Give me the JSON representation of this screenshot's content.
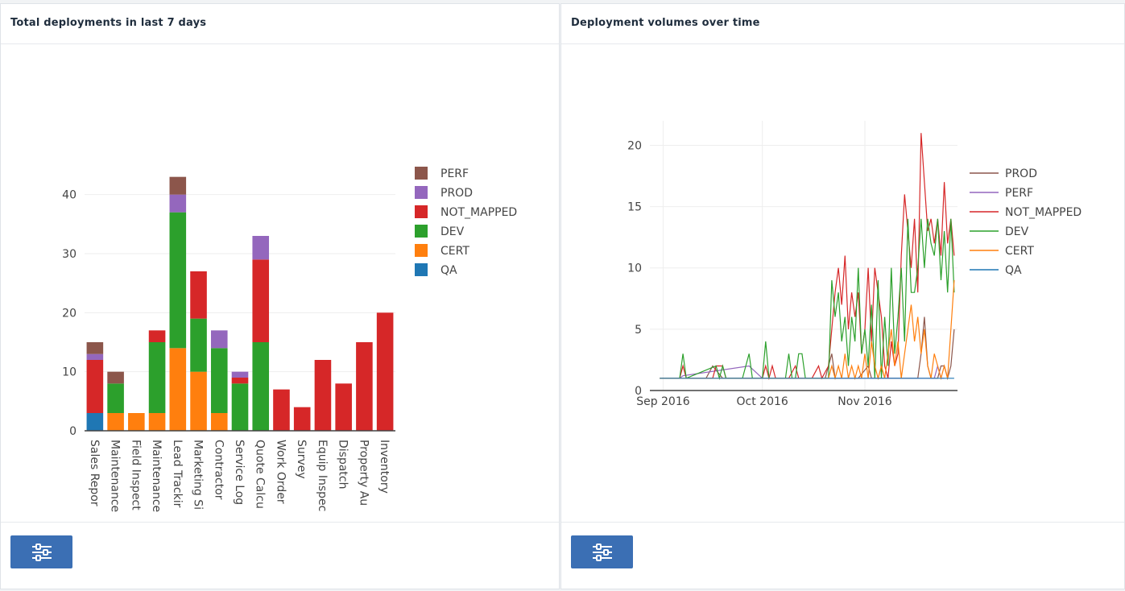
{
  "panels": {
    "left": {
      "title": "Total deployments in last 7 days",
      "settings_icon": "sliders-icon"
    },
    "right": {
      "title": "Deployment volumes over time",
      "settings_icon": "sliders-icon"
    }
  },
  "chart_data": [
    {
      "type": "bar",
      "stacked": true,
      "title": "Total deployments in last 7 days",
      "xlabel": "",
      "ylabel": "",
      "ylim": [
        0,
        45
      ],
      "yticks": [
        0,
        10,
        20,
        30,
        40
      ],
      "grid": true,
      "legend_placement": "top-right",
      "categories": [
        "Sales Repor",
        "Maintenance",
        "Field Inspect",
        "Maintenance",
        "Lead Trackir",
        "Marketing Si",
        "Contractor",
        "Service Log",
        "Quote Calcu",
        "Work Order",
        "Survey",
        "Equip Inspec",
        "Dispatch",
        "Property Au",
        "Inventory"
      ],
      "series": [
        {
          "name": "QA",
          "color": "#1f77b4",
          "values": [
            3,
            0,
            0,
            0,
            0,
            0,
            0,
            0,
            0,
            0,
            0,
            0,
            0,
            0,
            0
          ]
        },
        {
          "name": "CERT",
          "color": "#ff7f0e",
          "values": [
            0,
            3,
            3,
            3,
            14,
            10,
            3,
            0,
            0,
            0,
            0,
            0,
            0,
            0,
            0
          ]
        },
        {
          "name": "DEV",
          "color": "#2ca02c",
          "values": [
            0,
            5,
            0,
            12,
            23,
            9,
            11,
            8,
            15,
            0,
            0,
            0,
            0,
            0,
            0
          ]
        },
        {
          "name": "NOT_MAPPED",
          "color": "#d62728",
          "values": [
            9,
            0,
            0,
            2,
            0,
            8,
            0,
            1,
            14,
            7,
            4,
            12,
            8,
            15,
            20
          ]
        },
        {
          "name": "PROD",
          "color": "#9467bd",
          "values": [
            1,
            0,
            0,
            0,
            3,
            0,
            3,
            1,
            4,
            0,
            0,
            0,
            0,
            0,
            0
          ]
        },
        {
          "name": "PERF",
          "color": "#8c564b",
          "values": [
            2,
            2,
            0,
            0,
            3,
            0,
            0,
            0,
            0,
            0,
            0,
            0,
            0,
            0,
            0
          ]
        }
      ],
      "legend_order": [
        "PERF",
        "PROD",
        "NOT_MAPPED",
        "DEV",
        "CERT",
        "QA"
      ]
    },
    {
      "type": "line",
      "title": "Deployment volumes over time",
      "xlabel": "",
      "ylabel": "",
      "xlim": [
        "2016-08-28",
        "2016-11-29"
      ],
      "xticks": [
        {
          "date": "2016-09-01",
          "label": "Sep 2016"
        },
        {
          "date": "2016-10-01",
          "label": "Oct 2016"
        },
        {
          "date": "2016-11-01",
          "label": "Nov 2016"
        }
      ],
      "ylim": [
        0,
        22
      ],
      "yticks": [
        0,
        5,
        10,
        15,
        20
      ],
      "grid": true,
      "legend_placement": "top-right",
      "series": [
        {
          "name": "PROD",
          "color": "#8c564b",
          "points": [
            [
              "2016-09-09",
              1
            ],
            [
              "2016-09-14",
              1
            ],
            [
              "2016-09-16",
              2
            ],
            [
              "2016-09-19",
              1
            ],
            [
              "2016-10-20",
              1
            ],
            [
              "2016-10-22",
              3
            ],
            [
              "2016-10-23",
              1
            ],
            [
              "2016-10-30",
              1
            ],
            [
              "2016-11-02",
              2
            ],
            [
              "2016-11-03",
              1
            ],
            [
              "2016-11-06",
              1
            ],
            [
              "2016-11-08",
              1
            ],
            [
              "2016-11-09",
              1
            ],
            [
              "2016-11-15",
              1
            ],
            [
              "2016-11-17",
              1
            ],
            [
              "2016-11-18",
              3
            ],
            [
              "2016-11-19",
              6
            ],
            [
              "2016-11-20",
              2
            ],
            [
              "2016-11-21",
              1
            ],
            [
              "2016-11-22",
              1
            ],
            [
              "2016-11-23",
              1
            ],
            [
              "2016-11-24",
              2
            ],
            [
              "2016-11-25",
              2
            ],
            [
              "2016-11-26",
              1
            ],
            [
              "2016-11-27",
              2
            ],
            [
              "2016-11-28",
              5
            ]
          ]
        },
        {
          "name": "PERF",
          "color": "#9467bd",
          "points": [
            [
              "2016-08-31",
              1
            ],
            [
              "2016-09-06",
              1
            ],
            [
              "2016-09-07",
              1.2
            ],
            [
              "2016-09-27",
              2
            ],
            [
              "2016-10-01",
              1
            ],
            [
              "2016-11-15",
              1
            ],
            [
              "2016-11-22",
              1
            ],
            [
              "2016-11-23",
              2
            ],
            [
              "2016-11-24",
              1
            ],
            [
              "2016-11-25",
              1
            ]
          ]
        },
        {
          "name": "NOT_MAPPED",
          "color": "#d62728",
          "points": [
            [
              "2016-08-31",
              1
            ],
            [
              "2016-09-03",
              1
            ],
            [
              "2016-09-06",
              1
            ],
            [
              "2016-09-07",
              2
            ],
            [
              "2016-09-08",
              1
            ],
            [
              "2016-09-12",
              1
            ],
            [
              "2016-09-14",
              1
            ],
            [
              "2016-09-16",
              1
            ],
            [
              "2016-09-17",
              2
            ],
            [
              "2016-09-19",
              2
            ],
            [
              "2016-09-20",
              1
            ],
            [
              "2016-10-01",
              1
            ],
            [
              "2016-10-02",
              2
            ],
            [
              "2016-10-03",
              1
            ],
            [
              "2016-10-04",
              2
            ],
            [
              "2016-10-05",
              1
            ],
            [
              "2016-10-09",
              1
            ],
            [
              "2016-10-11",
              2
            ],
            [
              "2016-10-12",
              1
            ],
            [
              "2016-10-16",
              1
            ],
            [
              "2016-10-18",
              2
            ],
            [
              "2016-10-19",
              1
            ],
            [
              "2016-10-21",
              2
            ],
            [
              "2016-10-23",
              8
            ],
            [
              "2016-10-24",
              10
            ],
            [
              "2016-10-25",
              7
            ],
            [
              "2016-10-26",
              11
            ],
            [
              "2016-10-27",
              5
            ],
            [
              "2016-10-28",
              8
            ],
            [
              "2016-10-29",
              6
            ],
            [
              "2016-10-30",
              8
            ],
            [
              "2016-10-31",
              3
            ],
            [
              "2016-11-01",
              5
            ],
            [
              "2016-11-02",
              10
            ],
            [
              "2016-11-03",
              4
            ],
            [
              "2016-11-04",
              10
            ],
            [
              "2016-11-05",
              8
            ],
            [
              "2016-11-06",
              6
            ],
            [
              "2016-11-07",
              2
            ],
            [
              "2016-11-08",
              1
            ],
            [
              "2016-11-09",
              4
            ],
            [
              "2016-11-10",
              2
            ],
            [
              "2016-11-11",
              3
            ],
            [
              "2016-11-12",
              11
            ],
            [
              "2016-11-13",
              16
            ],
            [
              "2016-11-14",
              13
            ],
            [
              "2016-11-15",
              10
            ],
            [
              "2016-11-16",
              14
            ],
            [
              "2016-11-17",
              8
            ],
            [
              "2016-11-18",
              21
            ],
            [
              "2016-11-19",
              17
            ],
            [
              "2016-11-20",
              13
            ],
            [
              "2016-11-21",
              14
            ],
            [
              "2016-11-22",
              12
            ],
            [
              "2016-11-23",
              14
            ],
            [
              "2016-11-24",
              11
            ],
            [
              "2016-11-25",
              17
            ],
            [
              "2016-11-26",
              12
            ],
            [
              "2016-11-27",
              14
            ],
            [
              "2016-11-28",
              11
            ]
          ]
        },
        {
          "name": "DEV",
          "color": "#2ca02c",
          "points": [
            [
              "2016-08-31",
              1
            ],
            [
              "2016-09-06",
              1
            ],
            [
              "2016-09-07",
              3
            ],
            [
              "2016-09-08",
              1
            ],
            [
              "2016-09-17",
              2
            ],
            [
              "2016-09-18",
              1
            ],
            [
              "2016-09-19",
              2
            ],
            [
              "2016-09-20",
              1
            ],
            [
              "2016-09-25",
              1
            ],
            [
              "2016-09-26",
              2
            ],
            [
              "2016-09-27",
              3
            ],
            [
              "2016-09-28",
              1
            ],
            [
              "2016-10-01",
              1
            ],
            [
              "2016-10-02",
              4
            ],
            [
              "2016-10-03",
              1
            ],
            [
              "2016-10-08",
              1
            ],
            [
              "2016-10-09",
              3
            ],
            [
              "2016-10-10",
              1
            ],
            [
              "2016-10-11",
              1
            ],
            [
              "2016-10-12",
              3
            ],
            [
              "2016-10-13",
              3
            ],
            [
              "2016-10-14",
              1
            ],
            [
              "2016-10-21",
              1
            ],
            [
              "2016-10-22",
              9
            ],
            [
              "2016-10-23",
              6
            ],
            [
              "2016-10-24",
              8
            ],
            [
              "2016-10-25",
              4
            ],
            [
              "2016-10-26",
              6
            ],
            [
              "2016-10-27",
              2
            ],
            [
              "2016-10-28",
              6
            ],
            [
              "2016-10-29",
              4
            ],
            [
              "2016-10-30",
              10
            ],
            [
              "2016-10-31",
              3
            ],
            [
              "2016-11-01",
              5
            ],
            [
              "2016-11-02",
              2
            ],
            [
              "2016-11-03",
              7
            ],
            [
              "2016-11-04",
              1
            ],
            [
              "2016-11-05",
              9
            ],
            [
              "2016-11-06",
              1
            ],
            [
              "2016-11-07",
              6
            ],
            [
              "2016-11-08",
              2
            ],
            [
              "2016-11-09",
              10
            ],
            [
              "2016-11-10",
              3
            ],
            [
              "2016-11-11",
              6
            ],
            [
              "2016-11-12",
              10
            ],
            [
              "2016-11-13",
              4
            ],
            [
              "2016-11-14",
              14
            ],
            [
              "2016-11-15",
              8
            ],
            [
              "2016-11-16",
              8
            ],
            [
              "2016-11-17",
              10
            ],
            [
              "2016-11-18",
              14
            ],
            [
              "2016-11-19",
              10
            ],
            [
              "2016-11-20",
              14
            ],
            [
              "2016-11-21",
              12
            ],
            [
              "2016-11-22",
              11
            ],
            [
              "2016-11-23",
              14
            ],
            [
              "2016-11-24",
              9
            ],
            [
              "2016-11-25",
              13
            ],
            [
              "2016-11-26",
              8
            ],
            [
              "2016-11-27",
              14
            ],
            [
              "2016-11-28",
              8
            ]
          ]
        },
        {
          "name": "CERT",
          "color": "#ff7f0e",
          "points": [
            [
              "2016-08-31",
              1
            ],
            [
              "2016-09-06",
              1
            ],
            [
              "2016-09-10",
              1
            ],
            [
              "2016-09-14",
              1
            ],
            [
              "2016-10-21",
              1
            ],
            [
              "2016-10-22",
              2
            ],
            [
              "2016-10-23",
              1
            ],
            [
              "2016-10-24",
              2
            ],
            [
              "2016-10-25",
              1
            ],
            [
              "2016-10-26",
              3
            ],
            [
              "2016-10-27",
              1
            ],
            [
              "2016-10-28",
              2
            ],
            [
              "2016-10-29",
              1
            ],
            [
              "2016-10-30",
              2
            ],
            [
              "2016-10-31",
              1
            ],
            [
              "2016-11-01",
              3
            ],
            [
              "2016-11-02",
              1
            ],
            [
              "2016-11-03",
              4
            ],
            [
              "2016-11-04",
              2
            ],
            [
              "2016-11-05",
              1
            ],
            [
              "2016-11-06",
              2
            ],
            [
              "2016-11-07",
              1
            ],
            [
              "2016-11-08",
              3
            ],
            [
              "2016-11-09",
              5
            ],
            [
              "2016-11-10",
              2
            ],
            [
              "2016-11-11",
              4
            ],
            [
              "2016-11-12",
              1
            ],
            [
              "2016-11-13",
              3
            ],
            [
              "2016-11-14",
              5
            ],
            [
              "2016-11-15",
              7
            ],
            [
              "2016-11-16",
              4
            ],
            [
              "2016-11-17",
              6
            ],
            [
              "2016-11-18",
              3
            ],
            [
              "2016-11-19",
              5
            ],
            [
              "2016-11-20",
              2
            ],
            [
              "2016-11-21",
              1
            ],
            [
              "2016-11-22",
              3
            ],
            [
              "2016-11-23",
              2
            ],
            [
              "2016-11-24",
              1
            ],
            [
              "2016-11-25",
              2
            ],
            [
              "2016-11-26",
              1
            ],
            [
              "2016-11-27",
              5
            ],
            [
              "2016-11-28",
              9
            ]
          ]
        },
        {
          "name": "QA",
          "color": "#1f77b4",
          "points": [
            [
              "2016-08-31",
              1
            ],
            [
              "2016-11-28",
              1
            ]
          ]
        }
      ],
      "legend_order": [
        "PROD",
        "PERF",
        "NOT_MAPPED",
        "DEV",
        "CERT",
        "QA"
      ]
    }
  ]
}
